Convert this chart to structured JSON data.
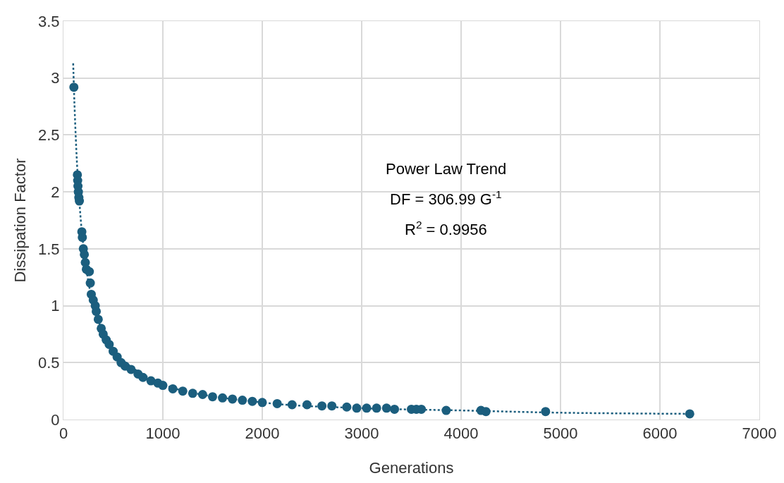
{
  "chart_data": {
    "type": "scatter",
    "xlabel": "Generations",
    "ylabel": "Dissipation Factor",
    "annotations": [
      "Power Law Trend",
      "DF = 306.99 G$^{-1}$",
      "R$^{2}$ = 0.9956"
    ],
    "xlim": [
      0,
      7000
    ],
    "xticks": [
      0,
      1000,
      2000,
      3000,
      4000,
      5000,
      6000,
      7000
    ],
    "ylim": [
      0,
      3.5
    ],
    "yticks": [
      0,
      0.5,
      1,
      1.5,
      2,
      2.5,
      3,
      3.5
    ],
    "grid": true,
    "marker": "circle",
    "series": [
      {
        "color": "#1b5e7e",
        "x": [
          105,
          140,
          143,
          146,
          150,
          155,
          160,
          185,
          190,
          200,
          210,
          220,
          230,
          260,
          270,
          280,
          300,
          320,
          330,
          350,
          380,
          400,
          430,
          460,
          500,
          540,
          580,
          620,
          680,
          750,
          800,
          880,
          950,
          1000,
          1100,
          1200,
          1300,
          1400,
          1500,
          1600,
          1700,
          1800,
          1900,
          2000,
          2150,
          2300,
          2450,
          2600,
          2700,
          2850,
          2950,
          3050,
          3150,
          3250,
          3330,
          3500,
          3550,
          3600,
          3850,
          4200,
          4250,
          4850,
          6300
        ],
        "values": [
          2.92,
          2.15,
          2.1,
          2.05,
          2.0,
          1.95,
          1.92,
          1.65,
          1.6,
          1.5,
          1.45,
          1.38,
          1.32,
          1.3,
          1.2,
          1.1,
          1.05,
          1.0,
          0.95,
          0.88,
          0.8,
          0.75,
          0.7,
          0.66,
          0.6,
          0.55,
          0.5,
          0.47,
          0.44,
          0.4,
          0.37,
          0.34,
          0.32,
          0.3,
          0.27,
          0.25,
          0.23,
          0.22,
          0.2,
          0.19,
          0.18,
          0.17,
          0.16,
          0.15,
          0.14,
          0.13,
          0.13,
          0.12,
          0.12,
          0.11,
          0.1,
          0.1,
          0.1,
          0.1,
          0.09,
          0.09,
          0.09,
          0.09,
          0.08,
          0.08,
          0.07,
          0.07,
          0.05
        ]
      },
      {
        "type": "line",
        "color": "#1b5e7e",
        "line_style": "dotted",
        "marker": "none",
        "x": [
          98,
          110,
          130,
          150,
          200,
          300,
          500,
          1000,
          2000,
          3000,
          4000,
          5000,
          6300
        ],
        "values": [
          3.13,
          2.79,
          2.36,
          2.05,
          1.53,
          1.02,
          0.61,
          0.31,
          0.15,
          0.1,
          0.08,
          0.06,
          0.05
        ]
      }
    ]
  }
}
